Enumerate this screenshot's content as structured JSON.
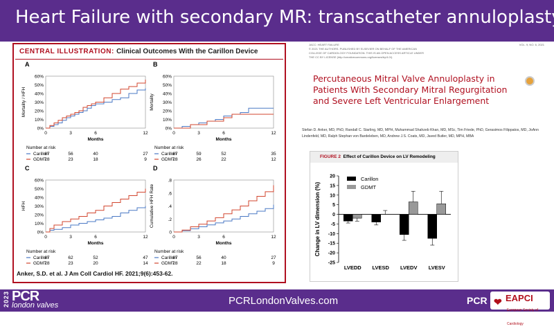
{
  "header": {
    "title": "Heart Failure with secondary MR: transcatheter annuloplasty"
  },
  "footer": {
    "url": "PCRLondonValves.com",
    "logo_year": "2023",
    "logo_main": "PCR",
    "logo_sub": "london valves",
    "pcr_mark": "PCR",
    "eapci": "EAPCI",
    "eapci_sub": "European Society of Cardiology"
  },
  "central": {
    "label": "CENTRAL ILLUSTRATION:",
    "title": "Clinical Outcomes With the Carillon Device",
    "citation": "Anker, S.D. et al. J Am Coll Cardiol HF. 2021;9(6):453-62.",
    "panels": [
      {
        "letter": "A",
        "ylabel": "Mortality / HFH",
        "yticks": [
          "60%",
          "50%",
          "40%",
          "30%",
          "20%",
          "10%",
          "0%"
        ],
        "xticks": [
          "0",
          "3",
          "6",
          "12"
        ],
        "xlabel": "Months",
        "risk_title": "Number at risk",
        "carillon": [
          "Carillon",
          "67",
          "56",
          "40",
          "27"
        ],
        "gdmt": [
          "GDMT",
          "28",
          "23",
          "18",
          "9"
        ]
      },
      {
        "letter": "B",
        "ylabel": "Mortality",
        "yticks": [
          "60%",
          "50%",
          "40%",
          "30%",
          "20%",
          "10%",
          "0%"
        ],
        "xticks": [
          "0",
          "3",
          "6",
          "12"
        ],
        "xlabel": "Months",
        "risk_title": "Number at risk",
        "carillon": [
          "Carillon",
          "67",
          "59",
          "52",
          "35"
        ],
        "gdmt": [
          "GDMT",
          "28",
          "26",
          "22",
          "12"
        ]
      },
      {
        "letter": "C",
        "ylabel": "HFH",
        "yticks": [
          "60%",
          "50%",
          "40%",
          "30%",
          "20%",
          "10%",
          "0%"
        ],
        "xticks": [
          "0",
          "3",
          "6",
          "12"
        ],
        "xlabel": "Months",
        "risk_title": "Number at risk",
        "carillon": [
          "Carillon",
          "67",
          "62",
          "52",
          "47"
        ],
        "gdmt": [
          "GDMT",
          "28",
          "23",
          "20",
          "14"
        ]
      },
      {
        "letter": "D",
        "ylabel": "Cumulative HFH Rate",
        "yticks": [
          ".8",
          ".6",
          ".4",
          ".2",
          "0"
        ],
        "xticks": [
          "0",
          "3",
          "6",
          "12"
        ],
        "xlabel": "Months",
        "risk_title": "Number at risk",
        "carillon": [
          "Carillon",
          "67",
          "56",
          "40",
          "27"
        ],
        "gdmt": [
          "GDMT",
          "28",
          "22",
          "18",
          "9"
        ]
      }
    ]
  },
  "paper": {
    "journal_lines": [
      "JACC: HEART FAILURE",
      "© 2021 THE AUTHORS. PUBLISHED BY ELSEVIER ON BEHALF OF THE AMERICAN",
      "COLLEGE OF CARDIOLOGY FOUNDATION. THIS IS AN OPEN ACCESS ARTICLE UNDER",
      "THE CC BY LICENSE (http://creativecommons.org/licenses/by/4.0/)."
    ],
    "volume": "VOL. 9, NO. 6, 2021",
    "title": "Percutaneous Mitral Valve Annuloplasty in Patients With Secondary Mitral Regurgitation and Severe Left Ventricular Enlargement",
    "authors": "Stefan D. Anker, MD, PhD, Randall C. Starling, MD, MPH, Muhammad Shahzeb Khan, MD, MSc, Tim Friede, PhD, Gerasimos Filippatos, MD, JoAnn Lindenfeld, MD, Ralph Stephan von Bardeleben, MD, Andrew J.S. Coats, MD, Javed Butler, MD, MPH, MBA"
  },
  "fig2": {
    "label": "FIGURE 2",
    "title": "Effect of Carillon Device on LV Remodeling"
  },
  "colors": {
    "carillon": "#4a78c4",
    "gdmt": "#d2452e",
    "brand": "#5a2d8c",
    "accent": "#b01020"
  },
  "chart_data": [
    {
      "type": "line",
      "title": "A",
      "ylabel": "Mortality / HFH",
      "xlabel": "Months",
      "ylim": [
        0,
        60
      ],
      "xlim": [
        0,
        12
      ],
      "series": [
        {
          "name": "Carillon",
          "x": [
            0,
            0.5,
            1,
            1.5,
            2,
            2.5,
            3,
            3.5,
            4,
            4.5,
            5,
            5.5,
            6,
            7,
            8,
            9,
            10,
            11,
            12
          ],
          "values": [
            0,
            2,
            4,
            6,
            9,
            12,
            14,
            16,
            18,
            20,
            23,
            26,
            28,
            30,
            33,
            35,
            40,
            44,
            46
          ]
        },
        {
          "name": "GDMT",
          "x": [
            0,
            0.5,
            1,
            1.5,
            2,
            2.5,
            3,
            3.5,
            4,
            4.5,
            5,
            5.5,
            6,
            7,
            8,
            9,
            10,
            11,
            12
          ],
          "values": [
            0,
            3,
            6,
            9,
            12,
            14,
            16,
            18,
            20,
            24,
            26,
            28,
            30,
            35,
            40,
            45,
            48,
            52,
            56
          ]
        }
      ]
    },
    {
      "type": "line",
      "title": "B",
      "ylabel": "Mortality",
      "xlabel": "Months",
      "ylim": [
        0,
        60
      ],
      "xlim": [
        0,
        12
      ],
      "series": [
        {
          "name": "Carillon",
          "x": [
            0,
            1,
            2,
            3,
            4,
            5,
            6,
            7,
            8,
            9,
            12
          ],
          "values": [
            0,
            2,
            4,
            6,
            8,
            10,
            14,
            16,
            18,
            23,
            23
          ]
        },
        {
          "name": "GDMT",
          "x": [
            0,
            1,
            2,
            3,
            4,
            5,
            6,
            7,
            8,
            12
          ],
          "values": [
            0,
            0,
            4,
            4,
            8,
            8,
            12,
            16,
            16,
            16
          ]
        }
      ]
    },
    {
      "type": "line",
      "title": "C",
      "ylabel": "HFH",
      "xlabel": "Months",
      "ylim": [
        0,
        60
      ],
      "xlim": [
        0,
        12
      ],
      "series": [
        {
          "name": "Carillon",
          "x": [
            0,
            0.5,
            1,
            2,
            3,
            4,
            5,
            6,
            7,
            8,
            9,
            10,
            11,
            12
          ],
          "values": [
            0,
            2,
            3,
            5,
            8,
            10,
            12,
            14,
            16,
            18,
            22,
            25,
            28,
            30
          ]
        },
        {
          "name": "GDMT",
          "x": [
            0,
            0.5,
            1,
            2,
            3,
            4,
            5,
            6,
            7,
            8,
            9,
            10,
            11,
            12
          ],
          "values": [
            0,
            4,
            8,
            12,
            15,
            18,
            22,
            25,
            30,
            34,
            38,
            42,
            46,
            50
          ]
        }
      ]
    },
    {
      "type": "line",
      "title": "D",
      "ylabel": "Cumulative HFH Rate",
      "xlabel": "Months",
      "ylim": [
        0,
        0.8
      ],
      "xlim": [
        0,
        12
      ],
      "series": [
        {
          "name": "Carillon",
          "x": [
            0,
            1,
            2,
            3,
            4,
            5,
            6,
            7,
            8,
            9,
            10,
            11,
            12
          ],
          "values": [
            0,
            0.02,
            0.05,
            0.08,
            0.11,
            0.14,
            0.17,
            0.2,
            0.24,
            0.28,
            0.32,
            0.36,
            0.42
          ]
        },
        {
          "name": "GDMT",
          "x": [
            0,
            1,
            2,
            3,
            4,
            5,
            6,
            7,
            8,
            9,
            10,
            11,
            12
          ],
          "values": [
            0,
            0.03,
            0.08,
            0.12,
            0.17,
            0.22,
            0.28,
            0.34,
            0.4,
            0.48,
            0.55,
            0.62,
            0.72
          ]
        }
      ]
    },
    {
      "type": "bar",
      "title": "Effect of Carillon Device on LV Remodeling",
      "ylabel": "Change in LV dimension (%)",
      "ylim": [
        -25,
        20
      ],
      "categories": [
        "LVEDD",
        "LVESD",
        "LVEDV",
        "LVESV"
      ],
      "yticks": [
        "20",
        "15",
        "10",
        "5",
        "0",
        "-5",
        "-10",
        "-15",
        "-20",
        "-25"
      ],
      "series": [
        {
          "name": "Carillon",
          "values": [
            -3.5,
            -4,
            -10.5,
            -12.5
          ],
          "err": [
            1,
            1.5,
            3,
            3.5
          ]
        },
        {
          "name": "GDMT",
          "values": [
            -2,
            0,
            6.5,
            5.5
          ],
          "err": [
            1.5,
            2,
            5.5,
            6.5
          ]
        }
      ]
    }
  ]
}
